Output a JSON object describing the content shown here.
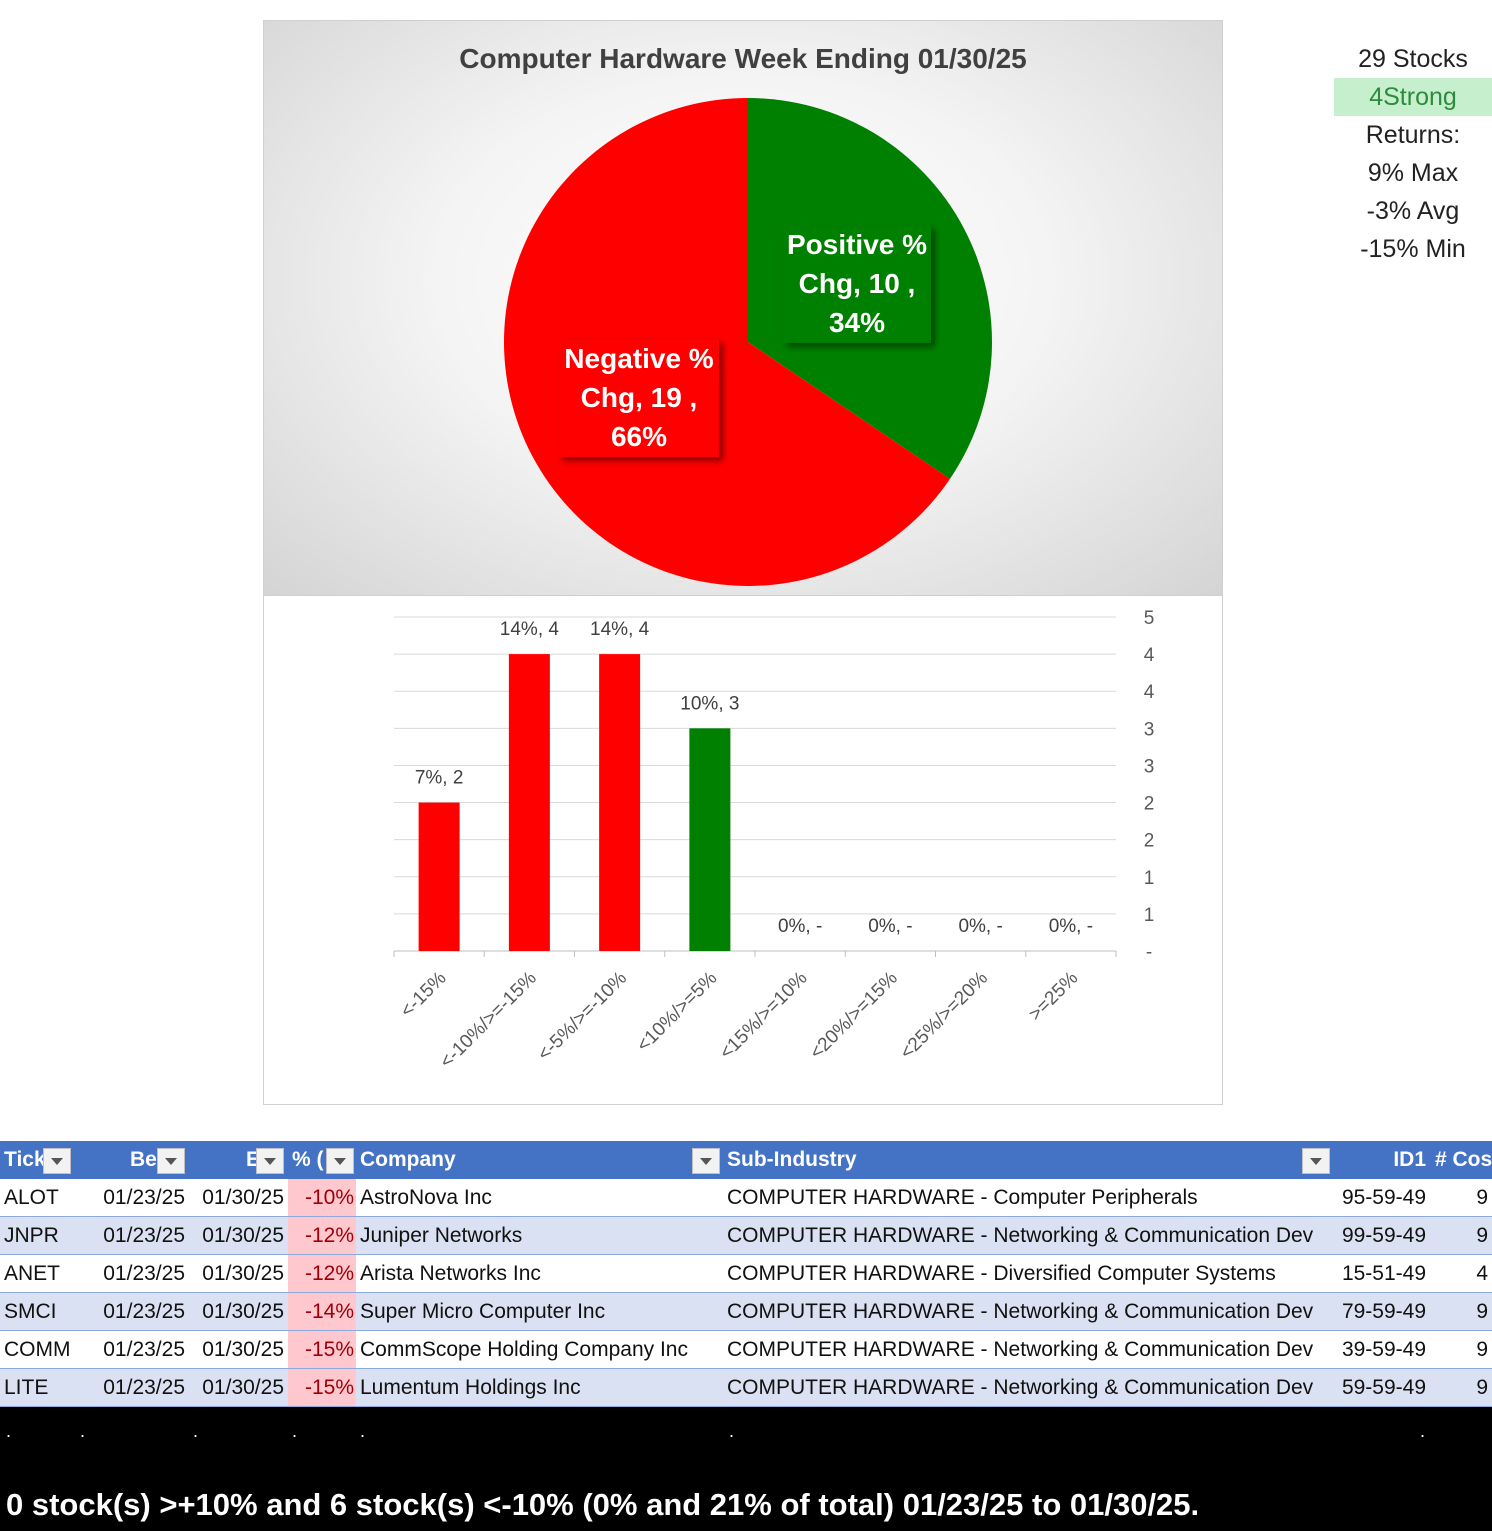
{
  "chart_data": [
    {
      "type": "pie",
      "title": "Computer Hardware Week Ending 01/30/25",
      "slices": [
        {
          "label": "Positive % Chg",
          "value": 10,
          "percent": "34%",
          "color": "#008000",
          "text": [
            "Positive %",
            "Chg,  10 ,",
            "34%"
          ]
        },
        {
          "label": "Negative % Chg",
          "value": 19,
          "percent": "66%",
          "color": "#ff0000",
          "text": [
            "Negative %",
            "Chg,  19 ,",
            "66%"
          ]
        }
      ]
    },
    {
      "type": "bar",
      "categories": [
        "<-15%",
        "<-10%/>=-15%",
        "<-5%/>=-10%",
        "<10%/>=5%",
        "<15%/>=10%",
        "<20%/>=15%",
        "<25%/>=20%",
        ">=25%"
      ],
      "values": [
        2,
        4,
        4,
        3,
        0,
        0,
        0,
        0
      ],
      "data_labels": [
        "7%,  2",
        "14%,  4",
        "14%,  4",
        "10%,  3",
        "0%,  -",
        "0%,  -",
        "0%,  -",
        "0%,  -"
      ],
      "colors": [
        "#ff0000",
        "#ff0000",
        "#ff0000",
        "#008000",
        "#ff0000",
        "#ff0000",
        "#ff0000",
        "#ff0000"
      ],
      "ylim": [
        0,
        4.5
      ],
      "y_tick_values": [
        0,
        0.5,
        1,
        1.5,
        2,
        2.5,
        3,
        3.5,
        4,
        4.5
      ],
      "y_tick_labels": [
        "-",
        "1",
        "1",
        "2",
        "2",
        "3",
        "3",
        "4",
        "4",
        "5"
      ],
      "y_axis_side": "right",
      "grid": true
    }
  ],
  "summary": {
    "stocks": "29 Stocks",
    "strong": "4Strong",
    "returns_label": "Returns:",
    "max": "9% Max",
    "avg": "-3% Avg",
    "min": "-15% Min"
  },
  "table": {
    "headers": [
      "Tick",
      "Be",
      "E",
      "% (",
      "Company",
      "Sub-Industry",
      "ID1",
      "# Cos"
    ],
    "rows": [
      {
        "ticker": "ALOT",
        "begin": "01/23/25",
        "end": "01/30/25",
        "pct": "-10%",
        "company": "AstroNova Inc",
        "sub": "COMPUTER HARDWARE - Computer Peripherals",
        "id1": "95-59-49",
        "cos": "9"
      },
      {
        "ticker": "JNPR",
        "begin": "01/23/25",
        "end": "01/30/25",
        "pct": "-12%",
        "company": "Juniper Networks",
        "sub": "COMPUTER HARDWARE - Networking & Communication Dev",
        "id1": "99-59-49",
        "cos": "9"
      },
      {
        "ticker": "ANET",
        "begin": "01/23/25",
        "end": "01/30/25",
        "pct": "-12%",
        "company": "Arista Networks Inc",
        "sub": "COMPUTER HARDWARE - Diversified Computer Systems",
        "id1": "15-51-49",
        "cos": "4"
      },
      {
        "ticker": "SMCI",
        "begin": "01/23/25",
        "end": "01/30/25",
        "pct": "-14%",
        "company": "Super Micro Computer Inc",
        "sub": "COMPUTER HARDWARE - Networking & Communication Dev",
        "id1": "79-59-49",
        "cos": "9"
      },
      {
        "ticker": "COMM",
        "begin": "01/23/25",
        "end": "01/30/25",
        "pct": "-15%",
        "company": "CommScope Holding Company Inc",
        "sub": "COMPUTER HARDWARE - Networking & Communication Dev",
        "id1": "39-59-49",
        "cos": "9"
      },
      {
        "ticker": "LITE",
        "begin": "01/23/25",
        "end": "01/30/25",
        "pct": "-15%",
        "company": "Lumentum Holdings Inc",
        "sub": "COMPUTER HARDWARE - Networking & Communication Dev",
        "id1": "59-59-49",
        "cos": "9"
      }
    ]
  },
  "footer": {
    "dots": [
      ".",
      ".",
      ".",
      ".",
      ".",
      ".",
      "."
    ],
    "text": "0 stock(s) >+10% and 6 stock(s) <-10% (0% and 21% of total) 01/23/25 to 01/30/25."
  }
}
